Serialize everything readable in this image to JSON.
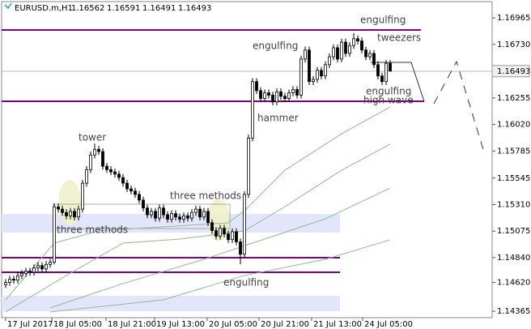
{
  "chart_data": {
    "type": "candlestick",
    "symbol": "EURUSD.m,H1",
    "xlim": [
      -1,
      120.2
    ],
    "xticks": [
      {
        "value": 0,
        "label": "17 Jul 2017"
      },
      {
        "value": 11.4,
        "label": "18 Jul 05:00"
      },
      {
        "value": 24.8,
        "label": "18 Jul 21:00"
      },
      {
        "value": 36.8,
        "label": "19 Jul 13:00"
      },
      {
        "value": 49.8,
        "label": "20 Jul 05:00"
      },
      {
        "value": 62.6,
        "label": "20 Jul 21:00"
      },
      {
        "value": 75.6,
        "label": "21 Jul 13:00"
      },
      {
        "value": 88.2,
        "label": "24 Jul 05:00"
      }
    ],
    "ylim": [
      1.14308,
      1.17109
    ],
    "yticks": [
      1.16965,
      {
        "value": 1.1673,
        "label": "1.16730"
      },
      1.16255,
      {
        "value": 1.1602,
        "label": "1.16020"
      },
      1.15785,
      1.15545,
      {
        "value": 1.1531,
        "label": "1.15310"
      },
      1.15075,
      {
        "value": 1.1484,
        "label": "1.14840"
      },
      {
        "value": 1.1462,
        "label": "1.14620"
      },
      1.14365
    ],
    "up_color": "#ffffff",
    "down_color": "#000000",
    "line_color": "#000000",
    "open": [
      1.146,
      1.1462,
      1.1465,
      1.1464,
      1.1468,
      1.147,
      1.1472,
      1.1471,
      1.1475,
      1.1477,
      1.1474,
      1.1478,
      1.148,
      1.1529,
      1.1527,
      1.1524,
      1.1521,
      1.1525,
      1.152,
      1.1527,
      1.155,
      1.1562,
      1.1575,
      1.158,
      1.1578,
      1.1565,
      1.1562,
      1.156,
      1.1558,
      1.1555,
      1.155,
      1.1545,
      1.1543,
      1.154,
      1.1535,
      1.1528,
      1.1522,
      1.1525,
      1.1519,
      1.1528,
      1.1522,
      1.1518,
      1.1523,
      1.152,
      1.1518,
      1.1521,
      1.1519,
      1.1524,
      1.1527,
      1.152,
      1.1525,
      1.1515,
      1.1508,
      1.1503,
      1.151,
      1.1505,
      1.15,
      1.1507,
      1.1498,
      1.1487,
      1.154,
      1.159,
      1.164,
      1.1632,
      1.1625,
      1.163,
      1.1628,
      1.1622,
      1.1631,
      1.1627,
      1.1625,
      1.163,
      1.1633,
      1.1628,
      1.166,
      1.1668,
      1.164,
      1.1642,
      1.165,
      1.1645,
      1.1655,
      1.1662,
      1.167,
      1.166,
      1.1675,
      1.1665,
      1.1672,
      1.1678,
      1.1676,
      1.1668,
      1.1662,
      1.1665,
      1.1655,
      1.1645,
      1.164,
      1.16562
    ],
    "high": [
      1.1465,
      1.1468,
      1.1468,
      1.1471,
      1.1473,
      1.1475,
      1.1475,
      1.1478,
      1.148,
      1.148,
      1.1481,
      1.1483,
      1.1532,
      1.1532,
      1.153,
      1.1527,
      1.1528,
      1.1528,
      1.153,
      1.1553,
      1.1565,
      1.1578,
      1.1585,
      1.1583,
      1.1581,
      1.1568,
      1.1565,
      1.1563,
      1.1561,
      1.1558,
      1.1553,
      1.1548,
      1.1546,
      1.1543,
      1.1538,
      1.1531,
      1.1528,
      1.1528,
      1.1531,
      1.1531,
      1.1525,
      1.1526,
      1.1526,
      1.1523,
      1.1524,
      1.1524,
      1.1527,
      1.153,
      1.153,
      1.1528,
      1.1528,
      1.1518,
      1.1511,
      1.1513,
      1.1513,
      1.1508,
      1.151,
      1.151,
      1.1501,
      1.1543,
      1.1593,
      1.1643,
      1.1643,
      1.1635,
      1.1633,
      1.1633,
      1.1631,
      1.1634,
      1.1634,
      1.163,
      1.1633,
      1.1636,
      1.1636,
      1.1663,
      1.1671,
      1.1671,
      1.1645,
      1.1653,
      1.1653,
      1.1658,
      1.1665,
      1.1673,
      1.1673,
      1.1678,
      1.1678,
      1.1675,
      1.1683,
      1.1681,
      1.1679,
      1.1671,
      1.1668,
      1.1668,
      1.1658,
      1.1648,
      1.1659,
      1.16591
    ],
    "low": [
      1.1457,
      1.1459,
      1.1461,
      1.1461,
      1.1465,
      1.1467,
      1.1468,
      1.1468,
      1.1472,
      1.1471,
      1.1471,
      1.1475,
      1.1478,
      1.1524,
      1.1521,
      1.1518,
      1.1518,
      1.1517,
      1.1517,
      1.1524,
      1.1547,
      1.1559,
      1.1572,
      1.1575,
      1.1562,
      1.1559,
      1.1557,
      1.1555,
      1.1552,
      1.1547,
      1.1542,
      1.154,
      1.1537,
      1.1532,
      1.1525,
      1.1519,
      1.1519,
      1.1516,
      1.1516,
      1.1519,
      1.1515,
      1.1515,
      1.1517,
      1.1515,
      1.1515,
      1.1516,
      1.1516,
      1.1521,
      1.1517,
      1.1517,
      1.1512,
      1.1505,
      1.15,
      1.15,
      1.1502,
      1.1497,
      1.1497,
      1.1495,
      1.1478,
      1.1484,
      1.1537,
      1.1587,
      1.1629,
      1.1622,
      1.1622,
      1.1625,
      1.1619,
      1.1619,
      1.1624,
      1.1622,
      1.1622,
      1.1627,
      1.1625,
      1.1625,
      1.1657,
      1.1637,
      1.1637,
      1.1639,
      1.1642,
      1.1642,
      1.1652,
      1.1659,
      1.1657,
      1.1657,
      1.1662,
      1.1662,
      1.1669,
      1.1673,
      1.1665,
      1.1659,
      1.1659,
      1.1652,
      1.1642,
      1.1637,
      1.1637,
      1.16491
    ],
    "close": [
      1.1462,
      1.1465,
      1.1464,
      1.1468,
      1.147,
      1.1472,
      1.1471,
      1.1475,
      1.1477,
      1.1474,
      1.1478,
      1.148,
      1.1529,
      1.1527,
      1.1524,
      1.1521,
      1.1525,
      1.152,
      1.1527,
      1.155,
      1.1562,
      1.1575,
      1.158,
      1.1578,
      1.1565,
      1.1562,
      1.156,
      1.1558,
      1.1555,
      1.155,
      1.1545,
      1.1543,
      1.154,
      1.1535,
      1.1528,
      1.1522,
      1.1525,
      1.1519,
      1.1528,
      1.1522,
      1.1518,
      1.1523,
      1.152,
      1.1518,
      1.1521,
      1.1519,
      1.1524,
      1.1527,
      1.152,
      1.1525,
      1.1515,
      1.1508,
      1.1503,
      1.151,
      1.1505,
      1.15,
      1.1507,
      1.1498,
      1.1487,
      1.154,
      1.159,
      1.164,
      1.1632,
      1.1625,
      1.163,
      1.1628,
      1.1622,
      1.1631,
      1.1627,
      1.1625,
      1.163,
      1.1633,
      1.1628,
      1.166,
      1.1668,
      1.164,
      1.1642,
      1.165,
      1.1645,
      1.1655,
      1.1662,
      1.167,
      1.166,
      1.1675,
      1.1665,
      1.1672,
      1.1678,
      1.1676,
      1.1668,
      1.1662,
      1.1665,
      1.1655,
      1.1645,
      1.164,
      1.16562,
      1.16493
    ],
    "indicators": [
      {
        "color": "#8fbc8f",
        "x": [
          0,
          12,
          23,
          39,
          55,
          59,
          69,
          83,
          95
        ],
        "values": [
          1.14466,
          1.14969,
          1.15077,
          1.15113,
          1.15148,
          1.15256,
          1.15615,
          1.15938,
          1.16175
        ]
      },
      {
        "color": "#8fbc8f",
        "x": [
          0,
          15,
          29,
          43,
          59,
          69,
          83,
          95
        ],
        "values": [
          1.14359,
          1.14682,
          1.14969,
          1.15005,
          1.15077,
          1.15292,
          1.15615,
          1.15845
        ]
      },
      {
        "color": "#8fbc8f",
        "x": [
          11,
          29,
          49,
          61,
          79,
          95
        ],
        "values": [
          1.14395,
          1.1461,
          1.14825,
          1.14969,
          1.15184,
          1.15457
        ]
      },
      {
        "color": "#8fbc8f",
        "x": [
          11,
          39,
          59,
          79,
          95
        ],
        "values": [
          1.14359,
          1.14466,
          1.14682,
          1.14825,
          1.14998
        ]
      }
    ],
    "annotations": [
      "engulfing",
      "tweezers",
      "engulfing",
      "engulfing",
      "high wave",
      "hammer",
      "tower",
      "three methods",
      "three methods",
      "engulfing"
    ]
  }
}
